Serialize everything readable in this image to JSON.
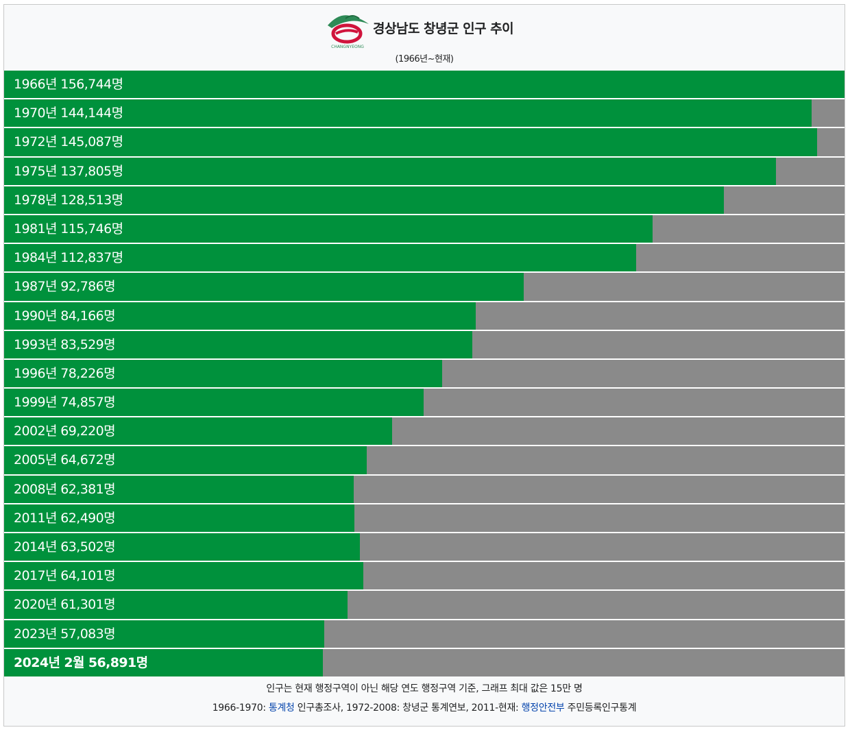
{
  "header": {
    "logo_text": "CHANGNYEONG",
    "title": "경상남도 창녕군 인구 추이",
    "subtitle": "(1966년~현재)"
  },
  "colors": {
    "bar": "#00913c",
    "track": "#8a8a8a",
    "link": "#0645ad"
  },
  "chart_data": {
    "type": "bar",
    "orientation": "horizontal",
    "title": "경상남도 창녕군 인구 추이",
    "subtitle": "(1966년~현재)",
    "xlim": [
      0,
      150000
    ],
    "categories": [
      "1966년",
      "1970년",
      "1972년",
      "1975년",
      "1978년",
      "1981년",
      "1984년",
      "1987년",
      "1990년",
      "1993년",
      "1996년",
      "1999년",
      "2002년",
      "2005년",
      "2008년",
      "2011년",
      "2014년",
      "2017년",
      "2020년",
      "2023년",
      "2024년 2월"
    ],
    "values": [
      156744,
      144144,
      145087,
      137805,
      128513,
      115746,
      112837,
      92786,
      84166,
      83529,
      78226,
      74857,
      69220,
      64672,
      62381,
      62490,
      63502,
      64101,
      61301,
      57083,
      56891
    ],
    "labels": [
      "1966년 156,744명",
      "1970년 144,144명",
      "1972년 145,087명",
      "1975년 137,805명",
      "1978년 128,513명",
      "1981년 115,746명",
      "1984년 112,837명",
      "1987년 92,786명",
      "1990년 84,166명",
      "1993년 83,529명",
      "1996년 78,226명",
      "1999년 74,857명",
      "2002년 69,220명",
      "2005년 64,672명",
      "2008년 62,381명",
      "2011년 62,490명",
      "2014년 63,502명",
      "2017년 64,101명",
      "2020년 61,301명",
      "2023년 57,083명",
      "2024년 2월 56,891명"
    ]
  },
  "footer": {
    "note": "인구는 현재 행정구역이 아닌 해당 연도 행정구역 기준, 그래프 최대 값은 15만 명",
    "source_prefix": "1966-1970: ",
    "source_link1": "통계청",
    "source_mid": " 인구총조사, 1972-2008: 창녕군 통계연보, 2011-현재: ",
    "source_link2": "행정안전부",
    "source_suffix": " 주민등록인구통계"
  }
}
